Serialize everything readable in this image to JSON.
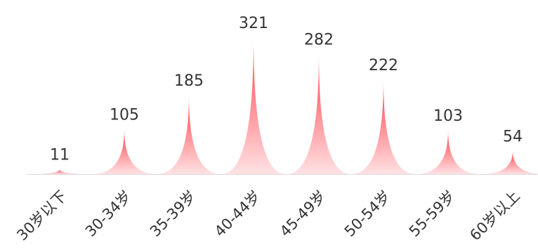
{
  "chart_data": {
    "type": "bar",
    "bar_shape": "pictorial-peak",
    "categories": [
      "30岁以下",
      "30-34岁",
      "35-39岁",
      "40-44岁",
      "45-49岁",
      "50-54岁",
      "55-59岁",
      "60岁以上"
    ],
    "values": [
      11,
      105,
      185,
      321,
      282,
      222,
      103,
      54
    ],
    "title": "",
    "xlabel": "",
    "ylabel": "",
    "ylim": [
      0,
      321
    ],
    "grid": false,
    "legend": "none",
    "data_labels": true,
    "colors": {
      "bar_top": "#ff3b45",
      "bar_bottom": "#ffe2e4",
      "axis": "#dcdcdc",
      "text": "#333333"
    }
  }
}
